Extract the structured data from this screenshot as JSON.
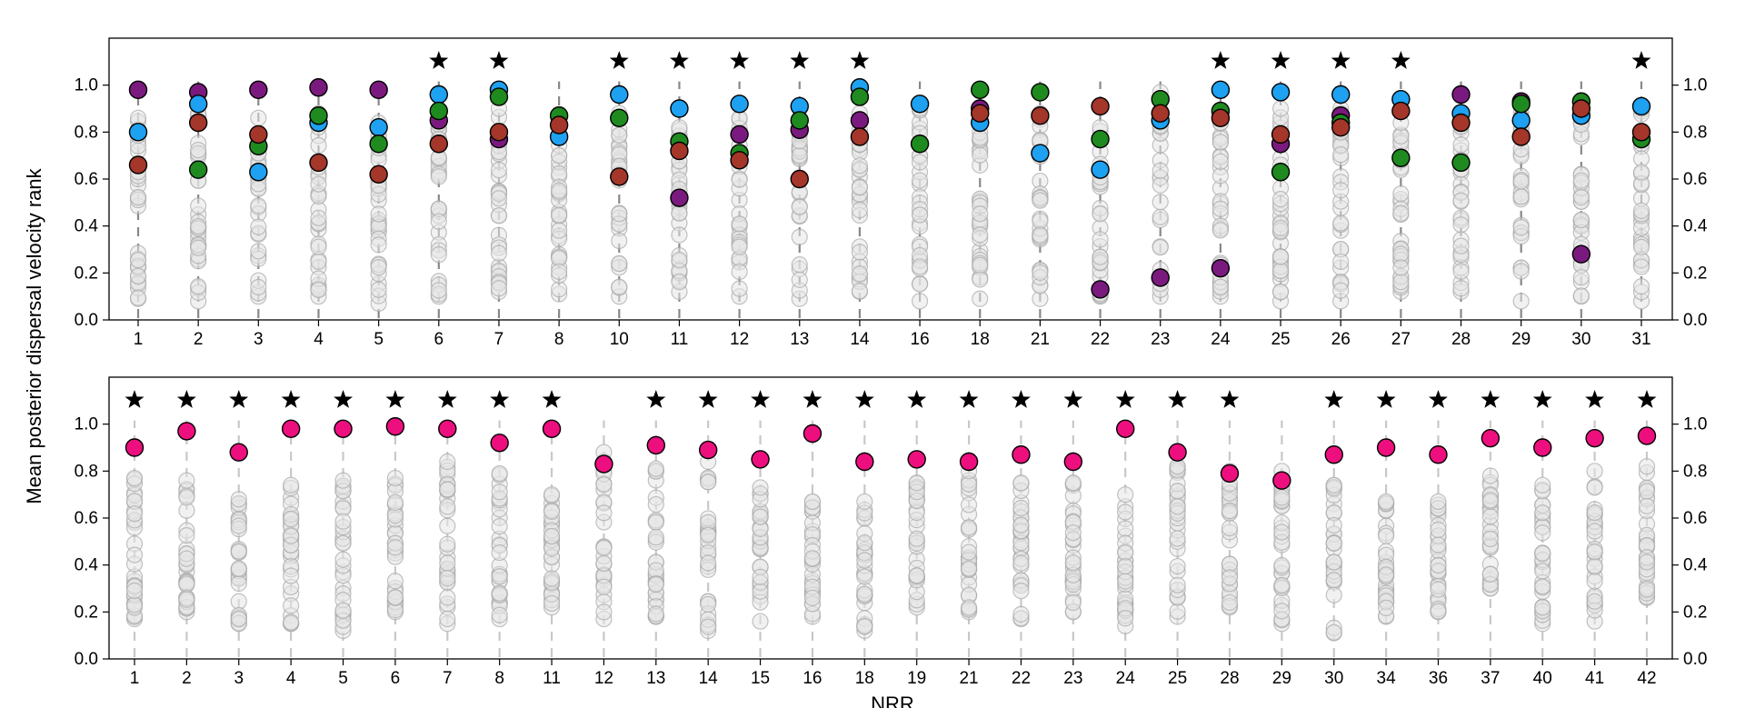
{
  "figure": {
    "ylabel": "Mean posterior dispersal velocity rank",
    "xlabel": "NRR"
  },
  "chart_data": [
    {
      "type": "scatter",
      "panel": "top",
      "xlabel": "",
      "ylabel": "Mean posterior dispersal velocity rank",
      "ylim": [
        0,
        1.2
      ],
      "yticks": [
        0.0,
        0.2,
        0.4,
        0.6,
        0.8,
        1.0
      ],
      "ytick_labels": [
        "0.0",
        "0.2",
        "0.4",
        "0.6",
        "0.8",
        "1.0"
      ],
      "grid": false,
      "categories": [
        "1",
        "2",
        "3",
        "4",
        "5",
        "6",
        "7",
        "8",
        "10",
        "11",
        "12",
        "13",
        "14",
        "16",
        "18",
        "21",
        "22",
        "23",
        "24",
        "25",
        "26",
        "27",
        "28",
        "29",
        "30",
        "31"
      ],
      "background_range": {
        "low": [
          0.09,
          0.08,
          0.1,
          0.1,
          0.07,
          0.1,
          0.12,
          0.11,
          0.1,
          0.12,
          0.1,
          0.09,
          0.12,
          0.08,
          0.09,
          0.09,
          0.1,
          0.1,
          0.1,
          0.08,
          0.08,
          0.12,
          0.12,
          0.08,
          0.1,
          0.08
        ],
        "high": [
          0.86,
          0.88,
          0.86,
          0.88,
          0.84,
          0.86,
          0.9,
          0.85,
          0.88,
          0.82,
          0.86,
          0.9,
          0.88,
          0.9,
          0.86,
          0.88,
          0.82,
          0.97,
          0.84,
          0.9,
          0.9,
          0.84,
          0.86,
          0.92,
          0.87,
          0.9
        ]
      },
      "star_categories": [
        "6",
        "7",
        "10",
        "11",
        "12",
        "13",
        "14",
        "24",
        "25",
        "26",
        "27",
        "31"
      ],
      "highlight_colors": {
        "purple": "#7b1a7e",
        "blue": "#1ea1f1",
        "green": "#1f8a1f",
        "red": "#a4362a"
      },
      "series": [
        {
          "color": "purple",
          "values": [
            0.98,
            0.97,
            0.98,
            0.99,
            0.98,
            0.85,
            0.77,
            null,
            null,
            0.52,
            0.79,
            0.81,
            0.85,
            null,
            0.9,
            null,
            0.13,
            0.18,
            0.22,
            0.75,
            0.87,
            null,
            0.96,
            0.93,
            0.28,
            null
          ]
        },
        {
          "color": "blue",
          "values": [
            0.8,
            0.92,
            0.63,
            0.84,
            0.82,
            0.96,
            0.98,
            0.78,
            0.96,
            0.9,
            0.92,
            0.91,
            0.99,
            0.92,
            0.84,
            0.71,
            0.64,
            0.85,
            0.98,
            0.97,
            0.96,
            0.94,
            0.88,
            0.85,
            0.87,
            0.91
          ]
        },
        {
          "color": "green",
          "values": [
            null,
            0.64,
            0.74,
            0.87,
            0.75,
            0.89,
            0.95,
            0.87,
            0.86,
            0.76,
            0.71,
            0.85,
            0.95,
            0.75,
            0.98,
            0.97,
            0.77,
            0.94,
            0.89,
            0.63,
            0.84,
            0.69,
            0.67,
            0.92,
            0.93,
            0.77
          ]
        },
        {
          "color": "red",
          "values": [
            0.66,
            0.84,
            0.79,
            0.67,
            0.62,
            0.75,
            0.8,
            0.83,
            0.61,
            0.72,
            0.68,
            0.6,
            0.78,
            null,
            0.88,
            0.87,
            0.91,
            0.88,
            0.86,
            0.79,
            0.82,
            0.89,
            0.84,
            0.78,
            0.9,
            0.8
          ]
        }
      ]
    },
    {
      "type": "scatter",
      "panel": "bottom",
      "xlabel": "NRR",
      "ylabel": "",
      "ylim": [
        0,
        1.2
      ],
      "yticks": [
        0.0,
        0.2,
        0.4,
        0.6,
        0.8,
        1.0
      ],
      "ytick_labels": [
        "0.0",
        "0.2",
        "0.4",
        "0.6",
        "0.8",
        "1.0"
      ],
      "grid": false,
      "categories": [
        "1",
        "2",
        "3",
        "4",
        "5",
        "6",
        "7",
        "8",
        "11",
        "12",
        "13",
        "14",
        "15",
        "16",
        "18",
        "19",
        "21",
        "22",
        "23",
        "24",
        "25",
        "28",
        "29",
        "30",
        "34",
        "36",
        "37",
        "40",
        "41",
        "42"
      ],
      "background_range": {
        "low": [
          0.17,
          0.2,
          0.15,
          0.15,
          0.12,
          0.2,
          0.15,
          0.17,
          0.22,
          0.17,
          0.18,
          0.12,
          0.16,
          0.18,
          0.12,
          0.22,
          0.2,
          0.17,
          0.2,
          0.14,
          0.18,
          0.22,
          0.15,
          0.11,
          0.18,
          0.2,
          0.3,
          0.15,
          0.16,
          0.26
        ],
        "high": [
          0.77,
          0.76,
          0.68,
          0.74,
          0.76,
          0.77,
          0.84,
          0.79,
          0.7,
          0.88,
          0.81,
          0.84,
          0.73,
          0.67,
          0.67,
          0.75,
          0.8,
          0.75,
          0.75,
          0.7,
          0.82,
          0.8,
          0.8,
          0.74,
          0.67,
          0.67,
          0.78,
          0.74,
          0.8,
          0.82
        ]
      },
      "star_categories": [
        "1",
        "2",
        "3",
        "4",
        "5",
        "6",
        "7",
        "8",
        "11",
        "13",
        "14",
        "15",
        "16",
        "18",
        "19",
        "21",
        "22",
        "23",
        "24",
        "25",
        "28",
        "30",
        "34",
        "36",
        "37",
        "40",
        "41",
        "42"
      ],
      "highlight_colors": {
        "pink": "#ee0f7f"
      },
      "series": [
        {
          "color": "pink",
          "values": [
            0.9,
            0.97,
            0.88,
            0.98,
            0.98,
            0.99,
            0.98,
            0.92,
            0.98,
            0.83,
            0.91,
            0.89,
            0.85,
            0.96,
            0.84,
            0.85,
            0.84,
            0.87,
            0.84,
            0.98,
            0.88,
            0.79,
            0.76,
            0.87,
            0.9,
            0.87,
            0.94,
            0.9,
            0.94,
            0.95
          ]
        }
      ]
    }
  ]
}
